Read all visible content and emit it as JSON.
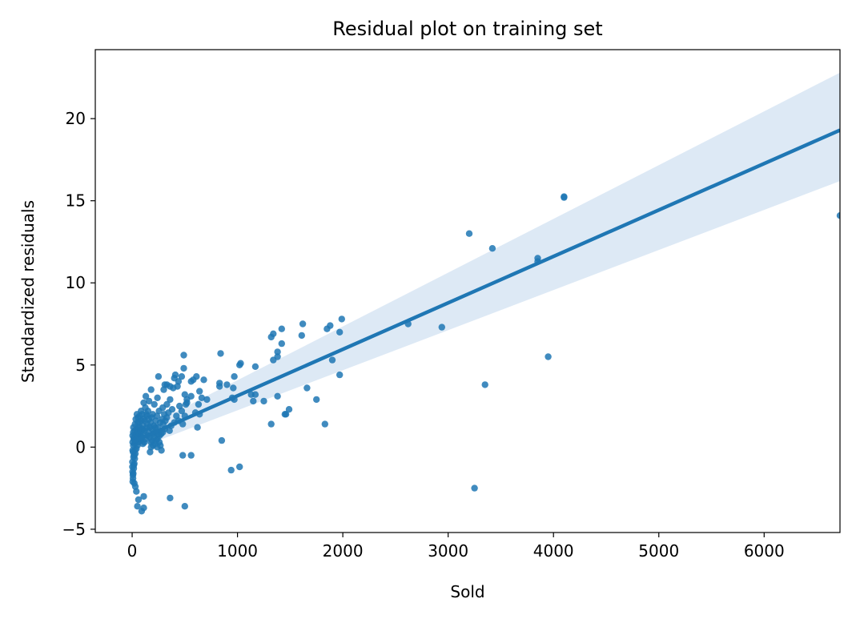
{
  "chart_data": {
    "type": "scatter",
    "title": "Residual plot on training set",
    "xlabel": "Sold",
    "ylabel": "Standardized residuals",
    "xlim": [
      -350,
      6720
    ],
    "ylim": [
      -5.2,
      24.2
    ],
    "xticks": [
      0,
      1000,
      2000,
      3000,
      4000,
      5000,
      6000
    ],
    "xtick_labels": [
      "0",
      "1000",
      "2000",
      "3000",
      "4000",
      "5000",
      "6000"
    ],
    "yticks": [
      -5,
      0,
      5,
      10,
      15,
      20
    ],
    "ytick_labels": [
      "−5",
      "0",
      "5",
      "10",
      "15",
      "20"
    ],
    "grid": false,
    "colors": {
      "points": "#1f77b4",
      "line": "#1f77b4",
      "band": "#c6dbef"
    },
    "regression": {
      "x": [
        0,
        6720
      ],
      "y": [
        0.3,
        19.3
      ],
      "ci_lower": [
        -0.2,
        16.2
      ],
      "ci_upper": [
        0.8,
        22.8
      ]
    },
    "points": [
      [
        6720,
        14.1
      ],
      [
        4100,
        15.2
      ],
      [
        4100,
        15.25
      ],
      [
        3200,
        13.0
      ],
      [
        3420,
        12.1
      ],
      [
        3850,
        11.5
      ],
      [
        3850,
        11.3
      ],
      [
        3950,
        5.5
      ],
      [
        3350,
        3.8
      ],
      [
        3250,
        -2.5
      ],
      [
        2620,
        7.5
      ],
      [
        2940,
        7.3
      ],
      [
        1990,
        7.8
      ],
      [
        1970,
        7.0
      ],
      [
        1970,
        4.4
      ],
      [
        1880,
        7.4
      ],
      [
        1850,
        7.2
      ],
      [
        1900,
        5.3
      ],
      [
        1830,
        1.4
      ],
      [
        1750,
        2.9
      ],
      [
        1660,
        3.6
      ],
      [
        1620,
        7.5
      ],
      [
        1610,
        6.8
      ],
      [
        1490,
        2.3
      ],
      [
        1460,
        2.0
      ],
      [
        1450,
        2.0
      ],
      [
        1420,
        7.2
      ],
      [
        1420,
        6.3
      ],
      [
        1380,
        5.8
      ],
      [
        1380,
        5.5
      ],
      [
        1340,
        6.9
      ],
      [
        1320,
        6.7
      ],
      [
        1340,
        5.3
      ],
      [
        1320,
        1.4
      ],
      [
        1380,
        3.1
      ],
      [
        1250,
        2.8
      ],
      [
        1170,
        4.9
      ],
      [
        1130,
        3.2
      ],
      [
        1170,
        3.2
      ],
      [
        1150,
        2.8
      ],
      [
        1020,
        5.0
      ],
      [
        1030,
        5.1
      ],
      [
        1020,
        -1.2
      ],
      [
        940,
        -1.4
      ],
      [
        970,
        4.3
      ],
      [
        950,
        3.0
      ],
      [
        970,
        2.9
      ],
      [
        900,
        3.8
      ],
      [
        960,
        3.6
      ],
      [
        840,
        5.7
      ],
      [
        830,
        3.9
      ],
      [
        830,
        3.7
      ],
      [
        850,
        0.4
      ],
      [
        710,
        2.9
      ],
      [
        680,
        4.1
      ],
      [
        660,
        3.0
      ],
      [
        640,
        3.4
      ],
      [
        630,
        2.6
      ],
      [
        640,
        2.0
      ],
      [
        610,
        4.3
      ],
      [
        580,
        4.1
      ],
      [
        560,
        4.0
      ],
      [
        560,
        3.1
      ],
      [
        520,
        2.9
      ],
      [
        510,
        2.6
      ],
      [
        500,
        3.2
      ],
      [
        490,
        5.6
      ],
      [
        490,
        4.8
      ],
      [
        470,
        4.3
      ],
      [
        440,
        4.0
      ],
      [
        430,
        3.7
      ],
      [
        410,
        4.4
      ],
      [
        400,
        4.2
      ],
      [
        390,
        3.6
      ],
      [
        360,
        3.7
      ],
      [
        330,
        3.8
      ],
      [
        310,
        3.8
      ],
      [
        300,
        3.5
      ],
      [
        360,
        2.9
      ],
      [
        330,
        2.6
      ],
      [
        290,
        2.4
      ],
      [
        250,
        4.3
      ],
      [
        240,
        3.0
      ],
      [
        210,
        2.6
      ],
      [
        180,
        3.5
      ],
      [
        160,
        2.8
      ],
      [
        130,
        3.1
      ],
      [
        110,
        2.7
      ],
      [
        500,
        1.9
      ],
      [
        470,
        2.2
      ],
      [
        440,
        1.6
      ],
      [
        400,
        1.5
      ],
      [
        370,
        1.3
      ],
      [
        330,
        1.8
      ],
      [
        310,
        1.1
      ],
      [
        290,
        0.9
      ],
      [
        260,
        0.7
      ],
      [
        240,
        0.5
      ],
      [
        220,
        1.2
      ],
      [
        200,
        0.8
      ],
      [
        190,
        0.4
      ],
      [
        180,
        0.0
      ],
      [
        170,
        -0.3
      ],
      [
        560,
        -0.5
      ],
      [
        480,
        -0.5
      ],
      [
        360,
        -3.1
      ],
      [
        500,
        -3.6
      ],
      [
        110,
        -3.0
      ],
      [
        110,
        -3.7
      ],
      [
        90,
        -3.9
      ],
      [
        60,
        -3.2
      ],
      [
        50,
        -3.6
      ],
      [
        40,
        -2.7
      ],
      [
        30,
        -2.4
      ],
      [
        20,
        -2.2
      ],
      [
        620,
        1.2
      ],
      [
        600,
        2.1
      ],
      [
        520,
        2.7
      ],
      [
        150,
        2.2
      ],
      [
        140,
        1.9
      ],
      [
        120,
        1.6
      ],
      [
        100,
        1.3
      ],
      [
        90,
        1.0
      ],
      [
        80,
        0.7
      ],
      [
        70,
        0.5
      ],
      [
        60,
        0.3
      ],
      [
        50,
        0.1
      ],
      [
        40,
        -0.1
      ],
      [
        30,
        -0.4
      ],
      [
        25,
        -0.7
      ],
      [
        20,
        -1.0
      ],
      [
        15,
        -1.3
      ],
      [
        10,
        -1.6
      ],
      [
        8,
        -1.9
      ],
      [
        6,
        -2.1
      ],
      [
        5,
        -0.2
      ],
      [
        5,
        0.3
      ],
      [
        5,
        0.7
      ],
      [
        10,
        0.9
      ],
      [
        12,
        1.2
      ],
      [
        15,
        0.5
      ],
      [
        18,
        -0.5
      ],
      [
        22,
        0.2
      ],
      [
        28,
        1.4
      ],
      [
        35,
        1.7
      ],
      [
        45,
        2.0
      ],
      [
        55,
        1.8
      ],
      [
        65,
        1.5
      ],
      [
        75,
        1.2
      ],
      [
        85,
        2.2
      ],
      [
        95,
        2.0
      ],
      [
        105,
        1.7
      ],
      [
        125,
        2.4
      ],
      [
        135,
        2.0
      ],
      [
        145,
        1.4
      ],
      [
        155,
        1.0
      ],
      [
        165,
        0.6
      ],
      [
        175,
        1.5
      ],
      [
        185,
        1.8
      ],
      [
        195,
        2.0
      ],
      [
        205,
        1.3
      ],
      [
        215,
        0.9
      ],
      [
        225,
        1.6
      ],
      [
        235,
        1.9
      ],
      [
        245,
        1.2
      ],
      [
        255,
        2.2
      ],
      [
        265,
        1.5
      ],
      [
        275,
        0.8
      ],
      [
        285,
        1.7
      ],
      [
        295,
        1.4
      ],
      [
        305,
        2.0
      ],
      [
        315,
        1.6
      ],
      [
        345,
        2.1
      ],
      [
        355,
        1.0
      ],
      [
        380,
        2.3
      ],
      [
        420,
        1.9
      ],
      [
        450,
        2.5
      ],
      [
        480,
        1.4
      ],
      [
        3,
        -0.9
      ],
      [
        3,
        -1.2
      ],
      [
        4,
        -1.5
      ],
      [
        7,
        -1.7
      ],
      [
        9,
        -0.3
      ],
      [
        11,
        0.1
      ],
      [
        13,
        -0.6
      ],
      [
        16,
        -1.1
      ],
      [
        19,
        0.6
      ],
      [
        24,
        1.0
      ],
      [
        26,
        -0.2
      ],
      [
        32,
        0.4
      ],
      [
        38,
        0.8
      ],
      [
        42,
        1.1
      ],
      [
        48,
        0.6
      ],
      [
        52,
        1.5
      ],
      [
        58,
        0.9
      ],
      [
        62,
        1.2
      ],
      [
        68,
        0.8
      ],
      [
        72,
        1.9
      ],
      [
        78,
        1.0
      ],
      [
        82,
        0.4
      ],
      [
        88,
        1.6
      ],
      [
        92,
        0.6
      ],
      [
        98,
        1.1
      ],
      [
        102,
        0.2
      ],
      [
        108,
        0.8
      ],
      [
        115,
        0.3
      ],
      [
        118,
        1.0
      ],
      [
        128,
        0.5
      ],
      [
        138,
        1.2
      ],
      [
        148,
        0.7
      ],
      [
        158,
        1.7
      ],
      [
        168,
        1.2
      ],
      [
        178,
        0.3
      ],
      [
        188,
        1.1
      ],
      [
        198,
        0.1
      ],
      [
        208,
        0.6
      ],
      [
        218,
        0.2
      ],
      [
        228,
        0.4
      ],
      [
        238,
        0.0
      ],
      [
        248,
        0.8
      ],
      [
        258,
        0.3
      ],
      [
        268,
        0.1
      ],
      [
        278,
        -0.2
      ]
    ]
  }
}
